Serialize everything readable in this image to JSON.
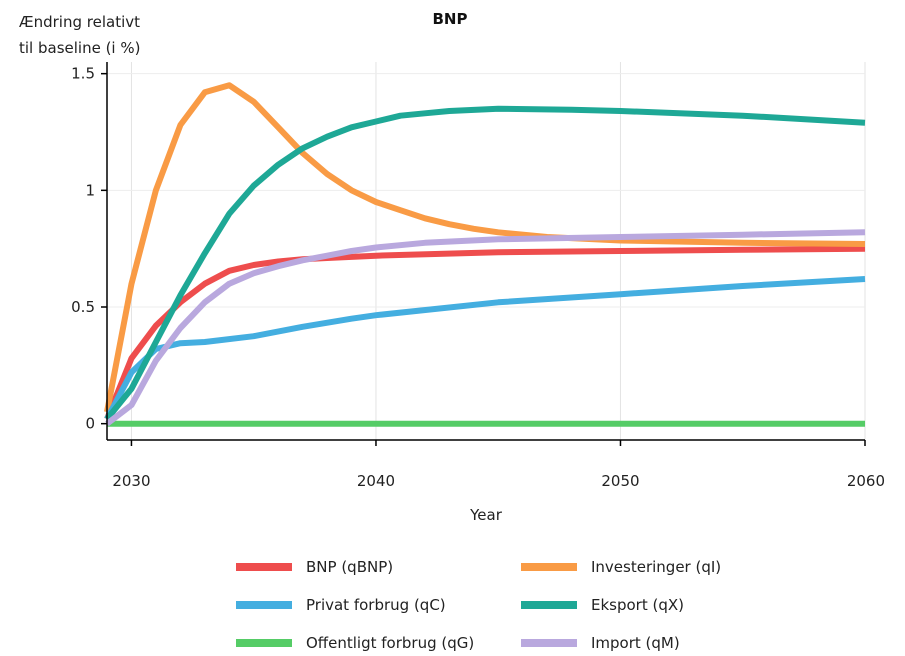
{
  "chart_data": {
    "type": "line",
    "title": "BNP",
    "ylabel_line1": "Ændring relativt",
    "ylabel_line2": "til baseline (i %)",
    "xlabel": "Year",
    "xlim": [
      2029,
      2060
    ],
    "ylim": [
      -0.07,
      1.55
    ],
    "x_ticks": [
      2030,
      2040,
      2050,
      2060
    ],
    "y_ticks": [
      {
        "value": 0,
        "label": "0"
      },
      {
        "value": 0.5,
        "label": "0.5"
      },
      {
        "value": 1,
        "label": "1"
      },
      {
        "value": 1.5,
        "label": "1.5"
      }
    ],
    "grid": "vertical",
    "legend_position": "bottom",
    "series": [
      {
        "name": "BNP (qBNP)",
        "color": "#EE4D4D",
        "points": [
          [
            2029,
            0.02
          ],
          [
            2030,
            0.28
          ],
          [
            2031,
            0.42
          ],
          [
            2032,
            0.52
          ],
          [
            2033,
            0.6
          ],
          [
            2034,
            0.655
          ],
          [
            2035,
            0.68
          ],
          [
            2036,
            0.695
          ],
          [
            2037,
            0.705
          ],
          [
            2038,
            0.71
          ],
          [
            2040,
            0.72
          ],
          [
            2045,
            0.735
          ],
          [
            2050,
            0.74
          ],
          [
            2055,
            0.745
          ],
          [
            2060,
            0.75
          ]
        ]
      },
      {
        "name": "Investeringer (qI)",
        "color": "#F99B45",
        "points": [
          [
            2029,
            0.05
          ],
          [
            2030,
            0.6
          ],
          [
            2031,
            1.0
          ],
          [
            2032,
            1.28
          ],
          [
            2033,
            1.42
          ],
          [
            2034,
            1.45
          ],
          [
            2035,
            1.38
          ],
          [
            2036,
            1.27
          ],
          [
            2037,
            1.16
          ],
          [
            2038,
            1.07
          ],
          [
            2039,
            1.0
          ],
          [
            2040,
            0.95
          ],
          [
            2041,
            0.915
          ],
          [
            2042,
            0.88
          ],
          [
            2043,
            0.855
          ],
          [
            2044,
            0.835
          ],
          [
            2045,
            0.82
          ],
          [
            2047,
            0.8
          ],
          [
            2050,
            0.785
          ],
          [
            2055,
            0.775
          ],
          [
            2060,
            0.77
          ]
        ]
      },
      {
        "name": "Privat forbrug (qC)",
        "color": "#44AEE0",
        "points": [
          [
            2029,
            0.02
          ],
          [
            2030,
            0.22
          ],
          [
            2031,
            0.32
          ],
          [
            2032,
            0.345
          ],
          [
            2033,
            0.35
          ],
          [
            2035,
            0.375
          ],
          [
            2037,
            0.415
          ],
          [
            2039,
            0.45
          ],
          [
            2040,
            0.465
          ],
          [
            2045,
            0.52
          ],
          [
            2050,
            0.555
          ],
          [
            2055,
            0.59
          ],
          [
            2060,
            0.62
          ]
        ]
      },
      {
        "name": "Eksport (qX)",
        "color": "#1EA896",
        "points": [
          [
            2029,
            0.02
          ],
          [
            2030,
            0.15
          ],
          [
            2031,
            0.35
          ],
          [
            2032,
            0.55
          ],
          [
            2033,
            0.73
          ],
          [
            2034,
            0.9
          ],
          [
            2035,
            1.02
          ],
          [
            2036,
            1.11
          ],
          [
            2037,
            1.18
          ],
          [
            2038,
            1.23
          ],
          [
            2039,
            1.27
          ],
          [
            2040,
            1.295
          ],
          [
            2041,
            1.32
          ],
          [
            2042,
            1.33
          ],
          [
            2043,
            1.34
          ],
          [
            2045,
            1.35
          ],
          [
            2048,
            1.345
          ],
          [
            2050,
            1.34
          ],
          [
            2055,
            1.32
          ],
          [
            2060,
            1.29
          ]
        ]
      },
      {
        "name": "Offentligt forbrug (qG)",
        "color": "#55CC66",
        "points": [
          [
            2029,
            0
          ],
          [
            2060,
            0
          ]
        ]
      },
      {
        "name": "Import (qM)",
        "color": "#B9A8DE",
        "points": [
          [
            2029,
            0.0
          ],
          [
            2030,
            0.08
          ],
          [
            2031,
            0.27
          ],
          [
            2032,
            0.41
          ],
          [
            2033,
            0.52
          ],
          [
            2034,
            0.6
          ],
          [
            2035,
            0.645
          ],
          [
            2036,
            0.675
          ],
          [
            2037,
            0.7
          ],
          [
            2038,
            0.72
          ],
          [
            2039,
            0.74
          ],
          [
            2040,
            0.755
          ],
          [
            2042,
            0.775
          ],
          [
            2045,
            0.79
          ],
          [
            2050,
            0.8
          ],
          [
            2055,
            0.81
          ],
          [
            2060,
            0.82
          ]
        ]
      }
    ]
  },
  "legend": {
    "items": [
      {
        "label": "BNP (qBNP)",
        "color": "#EE4D4D"
      },
      {
        "label": "Investeringer (qI)",
        "color": "#F99B45"
      },
      {
        "label": "Privat forbrug (qC)",
        "color": "#44AEE0"
      },
      {
        "label": "Eksport (qX)",
        "color": "#1EA896"
      },
      {
        "label": "Offentligt forbrug (qG)",
        "color": "#55CC66"
      },
      {
        "label": "Import (qM)",
        "color": "#B9A8DE"
      }
    ]
  }
}
